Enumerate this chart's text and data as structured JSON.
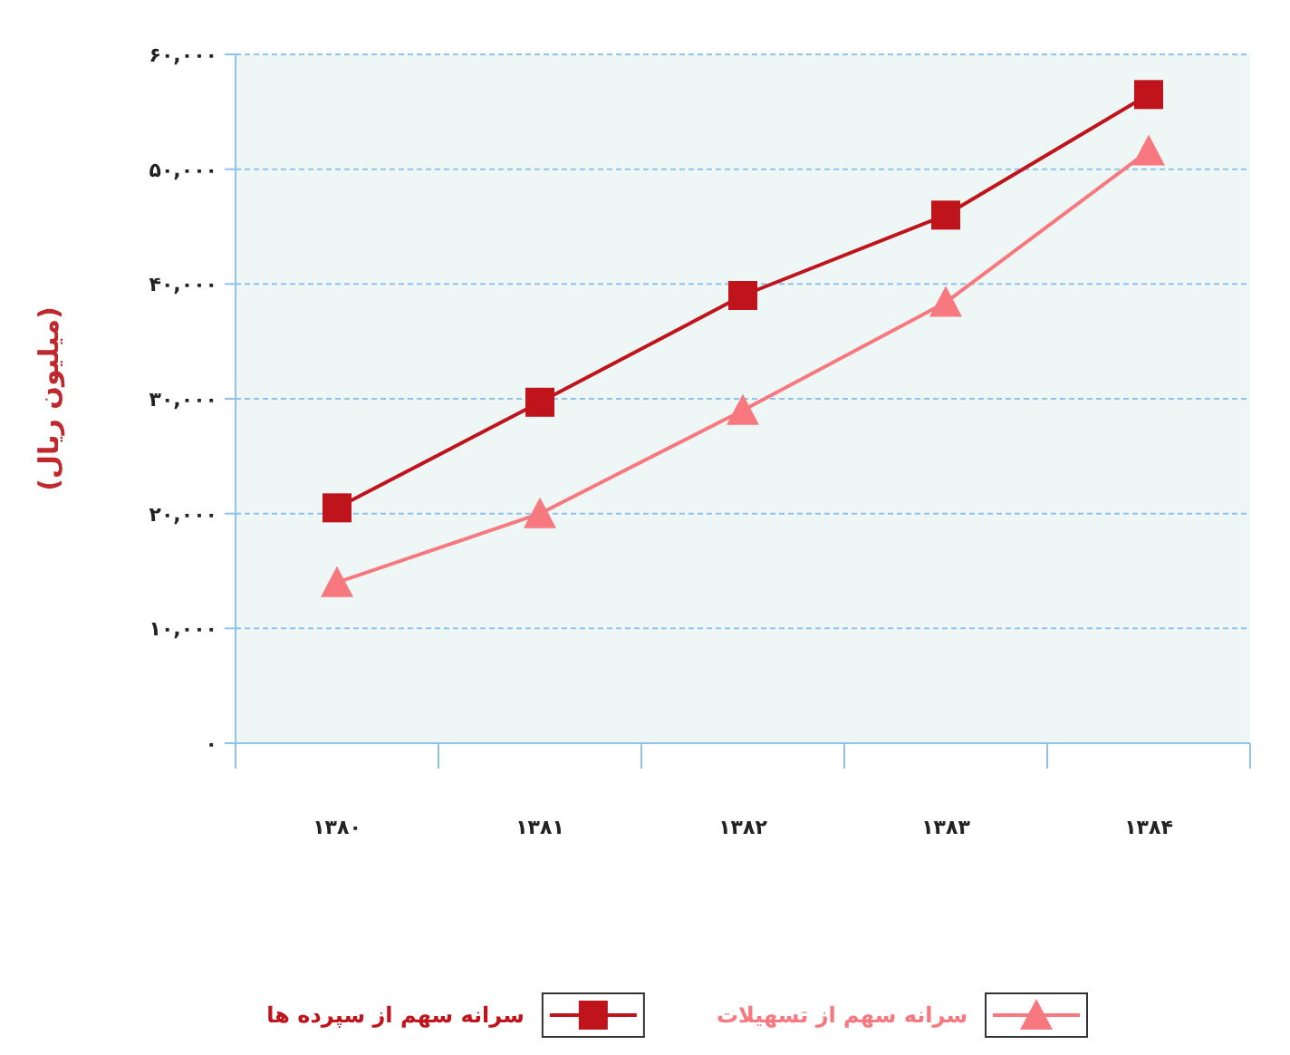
{
  "chart_data": {
    "type": "line",
    "ylabel": "(میلیون ریال)",
    "categories": [
      "۱۳۸۰",
      "۱۳۸۱",
      "۱۳۸۲",
      "۱۳۸۳",
      "۱۳۸۴"
    ],
    "series": [
      {
        "name": "سرانه سهم از سپرده ها",
        "color": "#c0141c",
        "marker": "square",
        "values": [
          20500,
          29700,
          39000,
          46000,
          56500
        ]
      },
      {
        "name": "سرانه سهم از تسهیلات",
        "color": "#f7797f",
        "marker": "triangle",
        "values": [
          14000,
          20000,
          29000,
          38400,
          51600
        ]
      }
    ],
    "ylim": [
      0,
      60000
    ],
    "yticks": [
      {
        "value": 0,
        "label": "۰"
      },
      {
        "value": 10000,
        "label": "۱۰,۰۰۰"
      },
      {
        "value": 20000,
        "label": "۲۰,۰۰۰"
      },
      {
        "value": 30000,
        "label": "۳۰,۰۰۰"
      },
      {
        "value": 40000,
        "label": "۴۰,۰۰۰"
      },
      {
        "value": 50000,
        "label": "۵۰,۰۰۰"
      },
      {
        "value": 60000,
        "label": "۶۰,۰۰۰"
      }
    ],
    "grid": "y",
    "legend": "bottom"
  }
}
